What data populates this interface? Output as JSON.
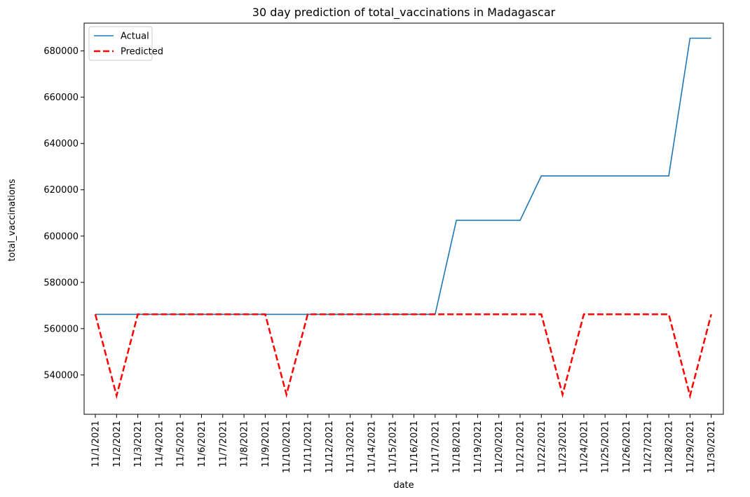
{
  "chart_data": {
    "type": "line",
    "title": "30 day prediction of total_vaccinations in Madagascar",
    "xlabel": "date",
    "ylabel": "total_vaccinations",
    "categories": [
      "11/1/2021",
      "11/2/2021",
      "11/3/2021",
      "11/4/2021",
      "11/5/2021",
      "11/6/2021",
      "11/7/2021",
      "11/8/2021",
      "11/9/2021",
      "11/10/2021",
      "11/11/2021",
      "11/12/2021",
      "11/13/2021",
      "11/14/2021",
      "11/15/2021",
      "11/16/2021",
      "11/17/2021",
      "11/18/2021",
      "11/19/2021",
      "11/20/2021",
      "11/21/2021",
      "11/22/2021",
      "11/23/2021",
      "11/24/2021",
      "11/25/2021",
      "11/26/2021",
      "11/27/2021",
      "11/28/2021",
      "11/29/2021",
      "11/30/2021"
    ],
    "ylim": [
      523000,
      692000
    ],
    "yticks": [
      540000,
      560000,
      580000,
      600000,
      620000,
      640000,
      660000,
      680000
    ],
    "grid": false,
    "legend_position": "top-left",
    "series": [
      {
        "name": "Actual",
        "color": "#1f77b4",
        "style": "solid",
        "values": [
          566200,
          566200,
          566200,
          566200,
          566200,
          566200,
          566200,
          566200,
          566200,
          566200,
          566200,
          566200,
          566200,
          566200,
          566200,
          566200,
          566200,
          606800,
          606800,
          606800,
          606800,
          626000,
          626000,
          626000,
          626000,
          626000,
          626000,
          626000,
          685500,
          685500
        ]
      },
      {
        "name": "Predicted",
        "color": "#ff0000",
        "style": "dashed",
        "values": [
          566200,
          531000,
          566200,
          566200,
          566200,
          566200,
          566200,
          566200,
          566200,
          531500,
          566200,
          566200,
          566200,
          566200,
          566200,
          566200,
          566200,
          566200,
          566200,
          566200,
          566200,
          566200,
          531500,
          566200,
          566200,
          566200,
          566200,
          566200,
          531000,
          566200
        ]
      }
    ]
  }
}
